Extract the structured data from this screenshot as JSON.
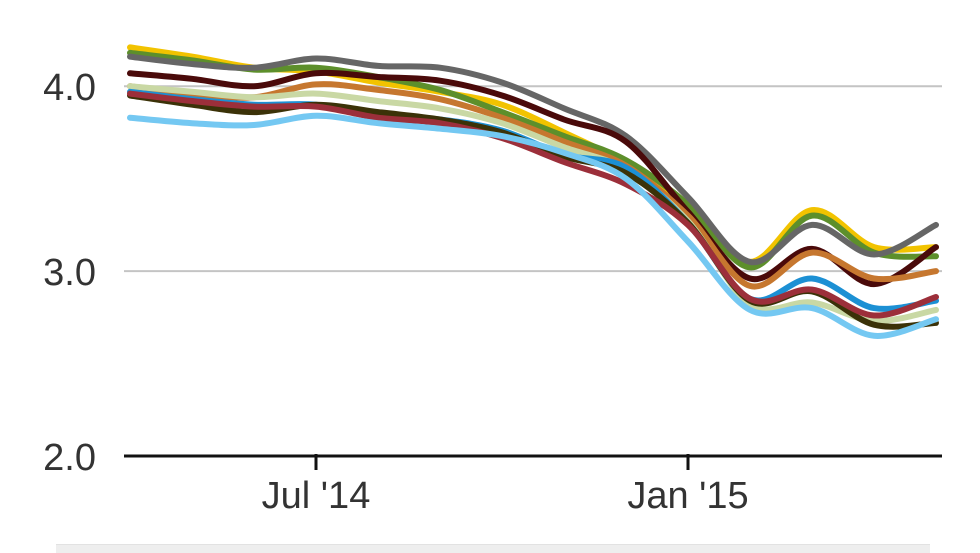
{
  "chart_data": {
    "type": "line",
    "title": "",
    "xlabel": "",
    "ylabel": "",
    "x": [
      "2014-04",
      "2014-05",
      "2014-06",
      "2014-07",
      "2014-08",
      "2014-09",
      "2014-10",
      "2014-11",
      "2014-12",
      "2015-01",
      "2015-02",
      "2015-03",
      "2015-04",
      "2015-05"
    ],
    "x_tick_labels": [
      {
        "x": "2014-07",
        "label": "Jul '14"
      },
      {
        "x": "2015-01",
        "label": "Jan '15"
      }
    ],
    "ylim": [
      2.0,
      4.25
    ],
    "y_ticks": [
      {
        "value": 2.0,
        "label": "2.0"
      },
      {
        "value": 3.0,
        "label": "3.0"
      },
      {
        "value": 4.0,
        "label": "4.0"
      }
    ],
    "grid": true,
    "legend": "none",
    "series": [
      {
        "color": "#f2c300",
        "values": [
          4.21,
          4.16,
          4.1,
          4.08,
          4.02,
          3.97,
          3.9,
          3.75,
          3.58,
          3.33,
          3.05,
          3.33,
          3.13,
          3.13
        ]
      },
      {
        "color": "#5d8f2b",
        "values": [
          4.18,
          4.14,
          4.09,
          4.1,
          4.05,
          3.98,
          3.86,
          3.73,
          3.6,
          3.36,
          3.02,
          3.3,
          3.1,
          3.08
        ]
      },
      {
        "color": "#666666",
        "values": [
          4.16,
          4.12,
          4.1,
          4.15,
          4.11,
          4.1,
          4.02,
          3.88,
          3.73,
          3.4,
          3.05,
          3.25,
          3.09,
          3.25
        ]
      },
      {
        "color": "#4a0a0a",
        "values": [
          4.07,
          4.04,
          4.0,
          4.07,
          4.05,
          4.03,
          3.95,
          3.82,
          3.7,
          3.32,
          2.96,
          3.12,
          2.93,
          3.13
        ]
      },
      {
        "color": "#c6772f",
        "values": [
          4.0,
          3.96,
          3.94,
          4.01,
          3.98,
          3.93,
          3.83,
          3.7,
          3.57,
          3.3,
          2.92,
          3.1,
          2.96,
          3.0
        ]
      },
      {
        "color": "#c9d8a4",
        "values": [
          4.0,
          3.97,
          3.94,
          3.96,
          3.92,
          3.88,
          3.8,
          3.67,
          3.55,
          3.27,
          2.82,
          2.83,
          2.73,
          2.79
        ]
      },
      {
        "color": "#1c90d4",
        "values": [
          3.97,
          3.93,
          3.9,
          3.9,
          3.84,
          3.82,
          3.76,
          3.63,
          3.56,
          3.26,
          2.85,
          2.96,
          2.8,
          2.84
        ]
      },
      {
        "color": "#3b3208",
        "values": [
          3.95,
          3.9,
          3.86,
          3.9,
          3.86,
          3.82,
          3.75,
          3.62,
          3.53,
          3.26,
          2.84,
          2.89,
          2.71,
          2.72
        ]
      },
      {
        "color": "#9c2f3a",
        "values": [
          3.96,
          3.92,
          3.89,
          3.89,
          3.83,
          3.8,
          3.72,
          3.59,
          3.47,
          3.25,
          2.85,
          2.9,
          2.76,
          2.86
        ]
      },
      {
        "color": "#74c8f2",
        "values": [
          3.83,
          3.8,
          3.79,
          3.84,
          3.8,
          3.77,
          3.73,
          3.64,
          3.5,
          3.16,
          2.79,
          2.8,
          2.65,
          2.74
        ]
      }
    ]
  }
}
